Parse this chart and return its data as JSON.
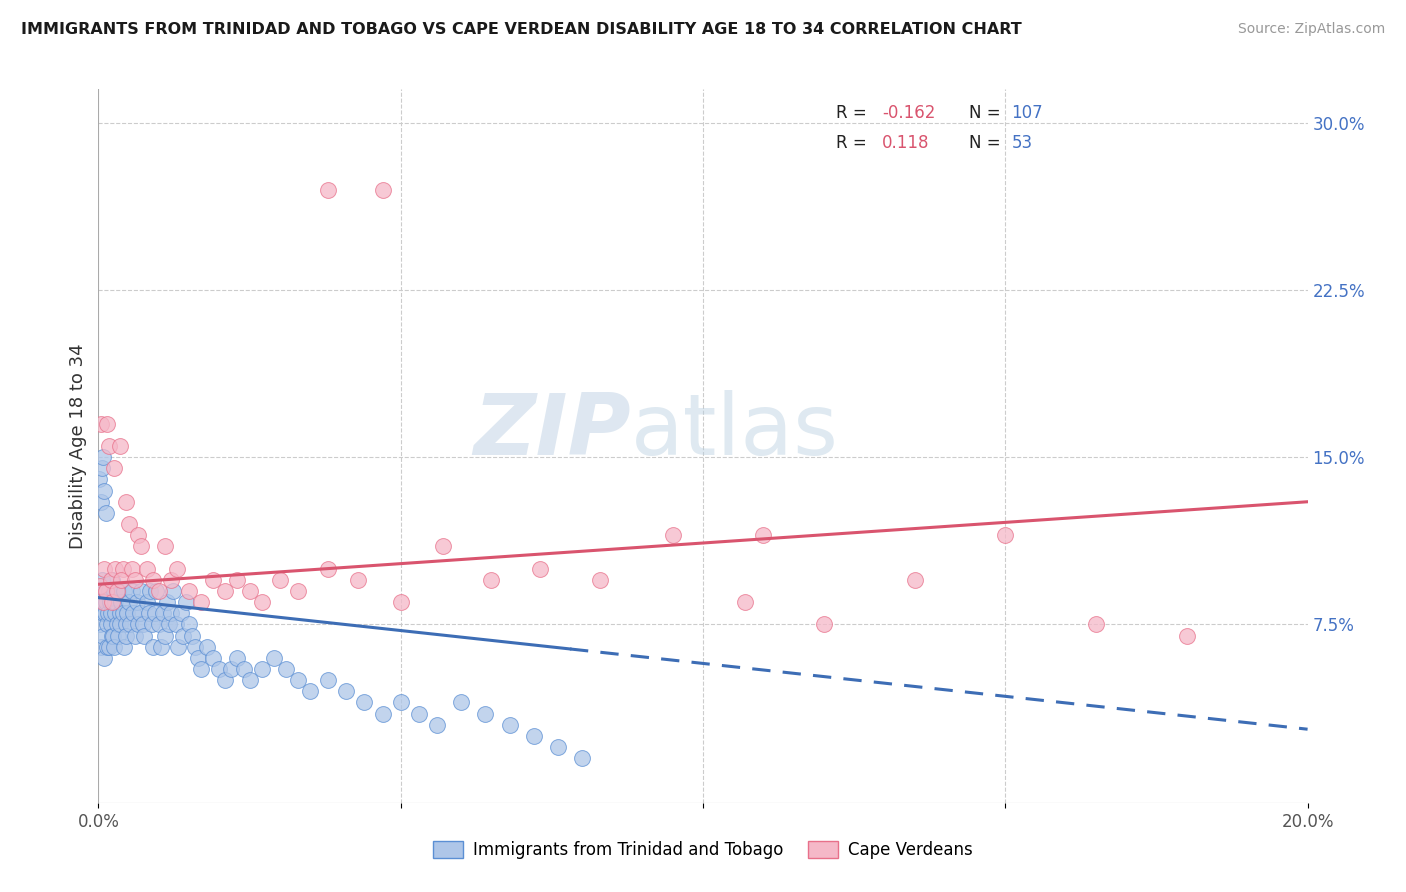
{
  "title": "IMMIGRANTS FROM TRINIDAD AND TOBAGO VS CAPE VERDEAN DISABILITY AGE 18 TO 34 CORRELATION CHART",
  "source": "Source: ZipAtlas.com",
  "ylabel": "Disability Age 18 to 34",
  "xlim": [
    0.0,
    0.2
  ],
  "ylim": [
    -0.005,
    0.315
  ],
  "ytick_labels_right": [
    "7.5%",
    "15.0%",
    "22.5%",
    "30.0%"
  ],
  "ytick_vals_right": [
    0.075,
    0.15,
    0.225,
    0.3
  ],
  "blue_R": -0.162,
  "blue_N": 107,
  "pink_R": 0.118,
  "pink_N": 53,
  "blue_fill_color": "#aec6e8",
  "pink_fill_color": "#f5b8c8",
  "blue_edge_color": "#5b8fd4",
  "pink_edge_color": "#e8708a",
  "blue_line_color": "#3d6db5",
  "pink_line_color": "#d9546e",
  "watermark_zip": "ZIP",
  "watermark_atlas": "atlas",
  "legend_label_blue": "Immigrants from Trinidad and Tobago",
  "legend_label_pink": "Cape Verdeans",
  "blue_trend_x0": 0.0,
  "blue_trend_y0": 0.087,
  "blue_trend_x1": 0.2,
  "blue_trend_y1": 0.028,
  "blue_trend_solid_end": 0.078,
  "pink_trend_x0": 0.0,
  "pink_trend_y0": 0.093,
  "pink_trend_x1": 0.2,
  "pink_trend_y1": 0.13,
  "pink_trend_solid_end": 0.2,
  "blue_scatter_x": [
    0.0002,
    0.0003,
    0.0005,
    0.0007,
    0.0004,
    0.0006,
    0.0008,
    0.001,
    0.0009,
    0.0011,
    0.0012,
    0.0014,
    0.0015,
    0.0013,
    0.0016,
    0.0018,
    0.002,
    0.0017,
    0.0019,
    0.0021,
    0.0022,
    0.0025,
    0.0023,
    0.0027,
    0.0024,
    0.0028,
    0.003,
    0.0026,
    0.0032,
    0.0035,
    0.0033,
    0.0038,
    0.0036,
    0.004,
    0.0042,
    0.0045,
    0.0043,
    0.0048,
    0.0046,
    0.005,
    0.0053,
    0.0055,
    0.0057,
    0.006,
    0.0063,
    0.0065,
    0.0068,
    0.007,
    0.0073,
    0.0076,
    0.008,
    0.0083,
    0.0085,
    0.0088,
    0.009,
    0.0093,
    0.0096,
    0.01,
    0.0103,
    0.0106,
    0.011,
    0.0113,
    0.0116,
    0.012,
    0.0124,
    0.0128,
    0.0132,
    0.0136,
    0.014,
    0.0145,
    0.015,
    0.0155,
    0.016,
    0.0165,
    0.017,
    0.018,
    0.019,
    0.02,
    0.021,
    0.022,
    0.023,
    0.024,
    0.025,
    0.027,
    0.029,
    0.031,
    0.033,
    0.035,
    0.038,
    0.041,
    0.044,
    0.047,
    0.05,
    0.053,
    0.056,
    0.06,
    0.064,
    0.068,
    0.072,
    0.076,
    0.08,
    0.0001,
    0.0004,
    0.0006,
    0.0008,
    0.001,
    0.0012
  ],
  "blue_scatter_y": [
    0.085,
    0.075,
    0.09,
    0.08,
    0.065,
    0.095,
    0.07,
    0.085,
    0.06,
    0.08,
    0.09,
    0.075,
    0.065,
    0.085,
    0.08,
    0.09,
    0.075,
    0.065,
    0.085,
    0.08,
    0.07,
    0.09,
    0.095,
    0.08,
    0.07,
    0.085,
    0.075,
    0.065,
    0.09,
    0.08,
    0.07,
    0.085,
    0.075,
    0.08,
    0.09,
    0.075,
    0.065,
    0.08,
    0.07,
    0.085,
    0.075,
    0.09,
    0.08,
    0.07,
    0.085,
    0.075,
    0.08,
    0.09,
    0.075,
    0.07,
    0.085,
    0.08,
    0.09,
    0.075,
    0.065,
    0.08,
    0.09,
    0.075,
    0.065,
    0.08,
    0.07,
    0.085,
    0.075,
    0.08,
    0.09,
    0.075,
    0.065,
    0.08,
    0.07,
    0.085,
    0.075,
    0.07,
    0.065,
    0.06,
    0.055,
    0.065,
    0.06,
    0.055,
    0.05,
    0.055,
    0.06,
    0.055,
    0.05,
    0.055,
    0.06,
    0.055,
    0.05,
    0.045,
    0.05,
    0.045,
    0.04,
    0.035,
    0.04,
    0.035,
    0.03,
    0.04,
    0.035,
    0.03,
    0.025,
    0.02,
    0.015,
    0.14,
    0.13,
    0.145,
    0.15,
    0.135,
    0.125
  ],
  "pink_scatter_x": [
    0.0002,
    0.0005,
    0.0008,
    0.001,
    0.0015,
    0.0013,
    0.0018,
    0.002,
    0.0025,
    0.0022,
    0.0028,
    0.003,
    0.0035,
    0.004,
    0.0038,
    0.0045,
    0.005,
    0.0055,
    0.006,
    0.0065,
    0.007,
    0.008,
    0.009,
    0.01,
    0.011,
    0.012,
    0.013,
    0.015,
    0.017,
    0.019,
    0.021,
    0.023,
    0.025,
    0.027,
    0.03,
    0.033,
    0.038,
    0.043,
    0.05,
    0.057,
    0.065,
    0.073,
    0.083,
    0.095,
    0.107,
    0.12,
    0.135,
    0.15,
    0.165,
    0.18,
    0.038,
    0.047,
    0.11
  ],
  "pink_scatter_y": [
    0.092,
    0.165,
    0.085,
    0.1,
    0.165,
    0.09,
    0.155,
    0.095,
    0.145,
    0.085,
    0.1,
    0.09,
    0.155,
    0.1,
    0.095,
    0.13,
    0.12,
    0.1,
    0.095,
    0.115,
    0.11,
    0.1,
    0.095,
    0.09,
    0.11,
    0.095,
    0.1,
    0.09,
    0.085,
    0.095,
    0.09,
    0.095,
    0.09,
    0.085,
    0.095,
    0.09,
    0.1,
    0.095,
    0.085,
    0.11,
    0.095,
    0.1,
    0.095,
    0.115,
    0.085,
    0.075,
    0.095,
    0.115,
    0.075,
    0.07,
    0.27,
    0.27,
    0.115
  ]
}
